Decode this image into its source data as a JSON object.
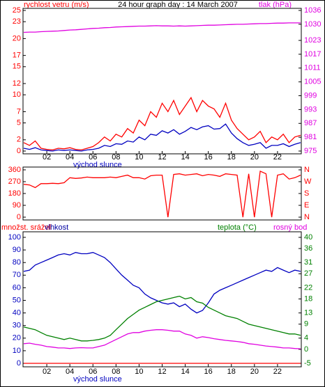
{
  "chart_data": [
    {
      "type": "line",
      "title": "24 hour graph day : 14 March 2007",
      "ylabel": "rychlost vetru (m/s)",
      "y2label": "tlak (hPa)",
      "annotation": {
        "text": "východ slunce",
        "x": 6.4
      },
      "x": [
        0,
        0.5,
        1,
        1.5,
        2,
        2.5,
        3,
        3.5,
        4,
        4.5,
        5,
        5.5,
        6,
        6.5,
        7,
        7.5,
        8,
        8.5,
        9,
        9.5,
        10,
        10.5,
        11,
        11.5,
        12,
        12.5,
        13,
        13.5,
        14,
        14.5,
        15,
        15.5,
        16,
        16.5,
        17,
        17.5,
        18,
        18.5,
        19,
        19.5,
        20,
        20.5,
        21,
        21.5,
        22,
        22.5,
        23,
        23.5,
        24
      ],
      "xlim": [
        0,
        24
      ],
      "xticks": [
        {
          "value": 2,
          "label": "02"
        },
        {
          "value": 4,
          "label": "04"
        },
        {
          "value": 6,
          "label": "06"
        },
        {
          "value": 8,
          "label": "08"
        },
        10,
        12,
        14,
        16,
        18,
        20,
        22
      ],
      "ylim": [
        0,
        25
      ],
      "yticks": [
        0,
        2,
        5,
        7,
        10,
        12,
        15,
        17,
        20,
        23,
        25
      ],
      "y2lim": [
        975,
        1036
      ],
      "y2ticks": [
        975,
        981,
        987,
        993,
        999,
        1005,
        1011,
        1017,
        1023,
        1030,
        1036
      ],
      "series": [
        {
          "color": "#ff0000",
          "values": [
            1.5,
            1,
            1.8,
            0.5,
            0.3,
            0.2,
            0.5,
            0.4,
            0.6,
            0.3,
            0.2,
            0.5,
            0.8,
            1.5,
            2.5,
            1.8,
            3,
            2.5,
            4,
            3.2,
            5.5,
            4.5,
            7,
            6,
            8.5,
            7,
            9,
            6.5,
            8,
            9.5,
            7,
            9,
            8,
            7.5,
            6,
            8.5,
            5.5,
            4,
            3,
            2,
            2.5,
            3.5,
            1.5,
            2.5,
            2,
            3,
            1.5,
            2.5,
            2.8
          ]
        },
        {
          "color": "#0000c0",
          "values": [
            0.5,
            0.3,
            0.6,
            0.2,
            0.1,
            0,
            0.2,
            0.1,
            0.2,
            0.1,
            0,
            0.2,
            0.3,
            0.5,
            1,
            0.8,
            1.3,
            1.2,
            1.8,
            1.6,
            2.5,
            2,
            3,
            2.8,
            3.6,
            3.2,
            3.8,
            3,
            3.5,
            4.2,
            3.8,
            4.3,
            4.5,
            3.9,
            4,
            4.8,
            3.2,
            2.2,
            1.5,
            1,
            1.2,
            1.5,
            0.5,
            1,
            1,
            1.3,
            0.8,
            1.2,
            1.5
          ]
        },
        {
          "color": "#e000e0",
          "axis": "y2",
          "values": [
            1026.5,
            1026.6,
            1026.6,
            1026.8,
            1026.9,
            1027,
            1027.1,
            1027.3,
            1027.5,
            1027.6,
            1027.8,
            1028,
            1028.2,
            1028.3,
            1028.5,
            1028.6,
            1028.8,
            1028.9,
            1029,
            1029.1,
            1029.2,
            1029.2,
            1029.3,
            1029.4,
            1029.3,
            1029.3,
            1029.2,
            1029.3,
            1029.2,
            1029.3,
            1029.4,
            1029.5,
            1029.6,
            1029.6,
            1029.7,
            1029.8,
            1029.9,
            1030,
            1030,
            1030.1,
            1030.2,
            1030.3,
            1030.3,
            1030.4,
            1030.5,
            1030.5,
            1030.6,
            1030.6,
            1030.6
          ]
        }
      ]
    },
    {
      "type": "line",
      "x": [
        0,
        0.5,
        1,
        1.5,
        2,
        2.5,
        3,
        3.5,
        4,
        4.5,
        5,
        5.5,
        6,
        6.5,
        7,
        7.5,
        8,
        8.5,
        9,
        9.5,
        10,
        10.5,
        11,
        11.5,
        12,
        12.5,
        13,
        13.5,
        14,
        14.5,
        15,
        15.5,
        16,
        16.5,
        17,
        17.5,
        18,
        18.5,
        19,
        19.5,
        20,
        20.5,
        21,
        21.5,
        22,
        22.5,
        23,
        23.5,
        24
      ],
      "xlim": [
        0,
        24
      ],
      "ylim": [
        0,
        360
      ],
      "yticks": [
        0,
        90,
        180,
        270,
        360
      ],
      "y2lim": [
        0,
        360
      ],
      "y2ticks": [
        {
          "value": 0,
          "label": "N"
        },
        {
          "value": 90,
          "label": "E"
        },
        {
          "value": 180,
          "label": "S"
        },
        {
          "value": 270,
          "label": "W"
        },
        {
          "value": 360,
          "label": "N"
        }
      ],
      "series": [
        {
          "color": "#ff0000",
          "values": [
            250,
            245,
            225,
            255,
            255,
            258,
            255,
            262,
            300,
            295,
            298,
            305,
            300,
            300,
            300,
            305,
            300,
            310,
            320,
            300,
            300,
            290,
            315,
            320,
            320,
            0,
            325,
            330,
            320,
            325,
            330,
            315,
            325,
            320,
            310,
            330,
            325,
            320,
            0,
            330,
            0,
            350,
            330,
            0,
            320,
            330,
            290,
            300,
            320
          ]
        }
      ]
    },
    {
      "type": "line",
      "annotation": {
        "text": "východ slunce",
        "x": 6.4
      },
      "x": [
        0,
        0.5,
        1,
        1.5,
        2,
        2.5,
        3,
        3.5,
        4,
        4.5,
        5,
        5.5,
        6,
        6.5,
        7,
        7.5,
        8,
        8.5,
        9,
        9.5,
        10,
        10.5,
        11,
        11.5,
        12,
        12.5,
        13,
        13.5,
        14,
        14.5,
        15,
        15.5,
        16,
        16.5,
        17,
        17.5,
        18,
        18.5,
        19,
        19.5,
        20,
        20.5,
        21,
        21.5,
        22,
        22.5,
        23,
        23.5,
        24
      ],
      "xlim": [
        0,
        24
      ],
      "xticks": [
        {
          "value": 2,
          "label": "02"
        },
        {
          "value": 4,
          "label": "04"
        },
        {
          "value": 6,
          "label": "06"
        },
        {
          "value": 8,
          "label": "08"
        },
        10,
        12,
        14,
        16,
        18,
        20,
        22
      ],
      "ylim": [
        0,
        100
      ],
      "yticks": [
        0,
        10,
        20,
        30,
        40,
        50,
        60,
        70,
        80,
        90,
        100
      ],
      "y2lim": [
        -5,
        40
      ],
      "y2ticks": [
        -5,
        0,
        4,
        9,
        13,
        18,
        22,
        27,
        31,
        36,
        40
      ],
      "series": [
        {
          "name": "množst. srážel",
          "color": "#ff0000",
          "values": [
            0,
            0,
            0,
            0,
            0,
            0,
            0,
            0,
            0,
            0,
            0,
            0,
            0,
            0,
            0,
            0,
            0,
            0,
            0,
            0,
            0,
            0,
            0,
            0,
            0,
            0,
            0,
            0,
            0,
            0,
            0,
            0,
            0,
            0,
            0,
            0,
            0,
            0,
            0,
            0,
            0,
            0,
            0,
            0,
            0,
            0,
            0,
            0,
            0
          ]
        },
        {
          "name": "vlhkost",
          "color": "#0000c0",
          "values": [
            73,
            74,
            78,
            80,
            82,
            84,
            86,
            87,
            86,
            88,
            87,
            87,
            88,
            86,
            84,
            80,
            75,
            70,
            66,
            62,
            60,
            55,
            52,
            50,
            48,
            47,
            48,
            45,
            47,
            43,
            40,
            42,
            48,
            55,
            58,
            60,
            62,
            64,
            66,
            68,
            70,
            72,
            74,
            73,
            76,
            74,
            72,
            74,
            73
          ]
        },
        {
          "name": "teplota (°C)",
          "color": "#008000",
          "axis": "y2",
          "values": [
            8,
            7.5,
            7,
            6,
            5,
            4.5,
            4,
            3.5,
            4,
            3.5,
            3,
            3,
            3.2,
            3.5,
            4,
            5,
            7,
            9,
            11,
            12.5,
            14,
            15,
            16,
            17,
            17.5,
            18,
            18.5,
            19,
            18,
            18.5,
            17,
            16.5,
            15,
            14,
            13,
            12,
            11.5,
            11,
            10,
            9,
            8.5,
            8,
            7.5,
            7,
            6.5,
            6,
            5.5,
            5.5,
            5
          ]
        },
        {
          "name": "rosný bod",
          "color": "#e000e0",
          "axis": "y2",
          "values": [
            2,
            2.2,
            1.8,
            1.5,
            1,
            0.8,
            0.5,
            0.5,
            0.3,
            0.5,
            0.6,
            0.5,
            0.5,
            1,
            1.5,
            2.5,
            3.5,
            4.5,
            5.5,
            6,
            6,
            6.5,
            6.8,
            7,
            7,
            6.8,
            6.5,
            6.5,
            5.5,
            5,
            4,
            4.5,
            4.2,
            3.8,
            3.5,
            3.2,
            3,
            2.8,
            2.5,
            2,
            1.8,
            1.5,
            1.2,
            1,
            0.8,
            0.5,
            0.5,
            0.3,
            0.2
          ]
        }
      ]
    }
  ]
}
